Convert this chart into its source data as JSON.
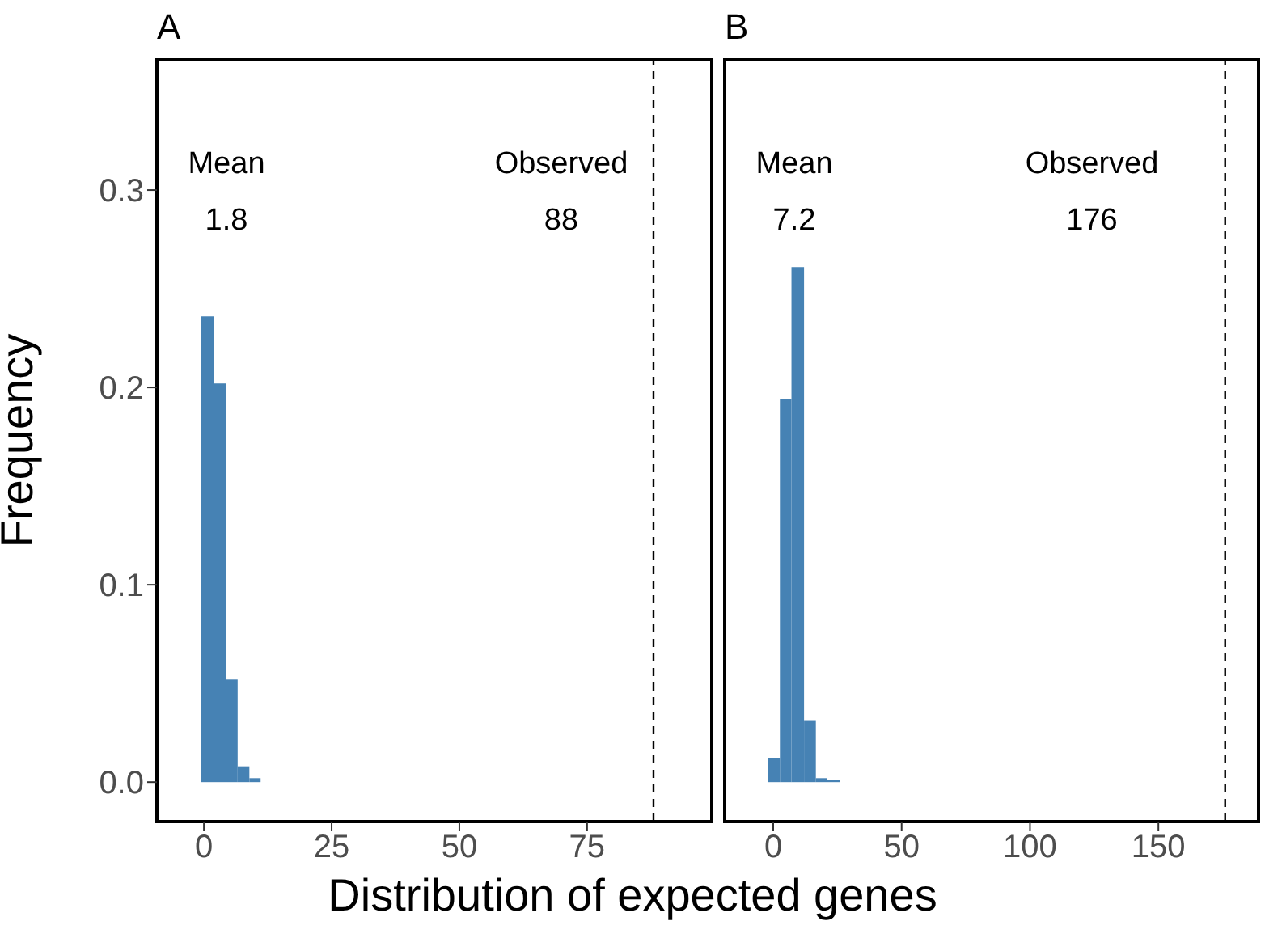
{
  "chart_data": [
    {
      "type": "histogram",
      "title": "A",
      "xlabel": "Distribution of expected genes",
      "ylabel": "Frequency",
      "bins": [
        -0.6,
        1.9,
        4.4,
        6.6,
        8.9,
        11.1
      ],
      "values": [
        0.236,
        0.202,
        0.052,
        0.008,
        0.002
      ],
      "color": "#4682b4",
      "xlim": [
        -9.2,
        99.4
      ],
      "xticks": [
        0,
        25,
        50,
        75
      ],
      "ylim": [
        -0.02,
        0.366
      ],
      "yticks": [
        {
          "value": 0,
          "label": "0.0"
        },
        0.1,
        0.2,
        0.3
      ],
      "grid": false,
      "ref_lines": [
        {
          "axis": "x",
          "value": 88,
          "color": "#000000",
          "line_style": "dashed"
        }
      ],
      "annotations": [
        "Mean",
        "1.8",
        "Observed",
        "88"
      ]
    },
    {
      "type": "histogram",
      "title": "B",
      "bins": [
        -1.9,
        2.6,
        7.1,
        12,
        16.6,
        21,
        26
      ],
      "values": [
        0.012,
        0.194,
        0.261,
        0.031,
        0.002,
        0.001
      ],
      "color": "#4682b4",
      "xlim": [
        -18.9,
        189
      ],
      "xticks": [
        0,
        50,
        100,
        150
      ],
      "ylim": [
        -0.02,
        0.366
      ],
      "yticks": [
        0,
        0.1,
        0.2,
        0.3
      ],
      "tick_labels": "x",
      "grid": false,
      "ref_lines": [
        {
          "axis": "x",
          "value": 176,
          "color": "#000000",
          "line_style": "dashed"
        }
      ],
      "annotations": [
        "Mean",
        "7.2",
        "Observed",
        "176"
      ]
    }
  ]
}
